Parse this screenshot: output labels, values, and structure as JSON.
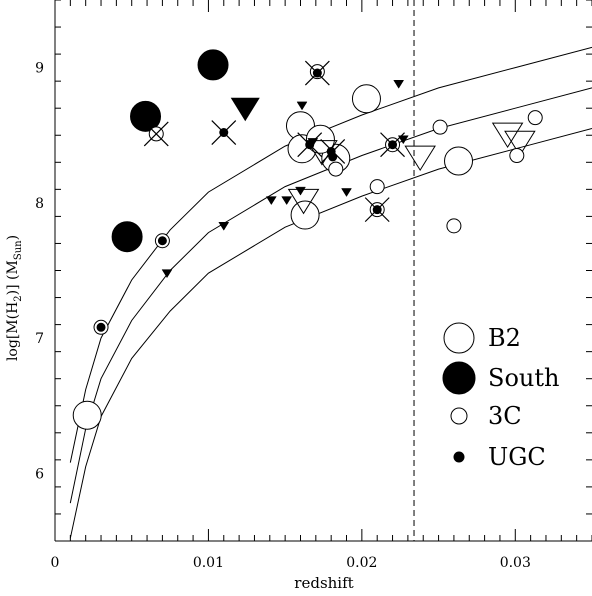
{
  "chart_data": {
    "type": "scatter",
    "xlabel": "redshift",
    "ylabel_main": "log[M(H",
    "ylabel_sub": "2",
    "ylabel_mid": ")]  (M",
    "ylabel_unit_sub": "Sun",
    "ylabel_end": ")",
    "xlim": [
      0,
      0.035
    ],
    "ylim": [
      5.5,
      9.5
    ],
    "xticks": [
      {
        "v": 0,
        "label": "0"
      },
      {
        "v": 0.01,
        "label": "0.01"
      },
      {
        "v": 0.02,
        "label": "0.02"
      },
      {
        "v": 0.03,
        "label": "0.03"
      }
    ],
    "yticks": [
      {
        "v": 6,
        "label": "6"
      },
      {
        "v": 7,
        "label": "7"
      },
      {
        "v": 8,
        "label": "8"
      },
      {
        "v": 9,
        "label": "9"
      }
    ],
    "vline_x": 0.0234,
    "legend": [
      {
        "symbol": "large-open-circle",
        "label": "B2"
      },
      {
        "symbol": "large-filled-circle",
        "label": "South"
      },
      {
        "symbol": "small-open-circle",
        "label": "3C"
      },
      {
        "symbol": "small-filled-circle",
        "label": "UGC"
      }
    ],
    "curves": [
      {
        "points": [
          [
            0.001,
            6.08
          ],
          [
            0.002,
            6.62
          ],
          [
            0.003,
            7.0
          ],
          [
            0.005,
            7.43
          ],
          [
            0.0075,
            7.8
          ],
          [
            0.01,
            8.08
          ],
          [
            0.015,
            8.42
          ],
          [
            0.02,
            8.65
          ],
          [
            0.025,
            8.85
          ],
          [
            0.03,
            9.0
          ],
          [
            0.035,
            9.15
          ]
        ]
      },
      {
        "points": [
          [
            0.001,
            5.78
          ],
          [
            0.002,
            6.33
          ],
          [
            0.003,
            6.7
          ],
          [
            0.005,
            7.13
          ],
          [
            0.0075,
            7.5
          ],
          [
            0.01,
            7.78
          ],
          [
            0.015,
            8.12
          ],
          [
            0.02,
            8.35
          ],
          [
            0.025,
            8.55
          ],
          [
            0.03,
            8.7
          ],
          [
            0.035,
            8.85
          ]
        ]
      },
      {
        "points": [
          [
            0.001,
            5.52
          ],
          [
            0.002,
            6.05
          ],
          [
            0.003,
            6.42
          ],
          [
            0.005,
            6.85
          ],
          [
            0.0075,
            7.2
          ],
          [
            0.01,
            7.48
          ],
          [
            0.015,
            7.82
          ],
          [
            0.02,
            8.05
          ],
          [
            0.025,
            8.25
          ],
          [
            0.03,
            8.4
          ],
          [
            0.035,
            8.55
          ]
        ]
      }
    ],
    "b2_circles": [
      {
        "x": 0.0021,
        "y": 6.43
      },
      {
        "x": 0.0183,
        "y": 8.33
      },
      {
        "x": 0.0163,
        "y": 7.91
      },
      {
        "x": 0.016,
        "y": 8.57
      },
      {
        "x": 0.0161,
        "y": 8.4
      },
      {
        "x": 0.0173,
        "y": 8.47
      },
      {
        "x": 0.0203,
        "y": 8.77
      },
      {
        "x": 0.0263,
        "y": 8.31
      }
    ],
    "b2_triangles": [
      {
        "x": 0.0162,
        "y": 8.02
      },
      {
        "x": 0.0174,
        "y": 8.38
      },
      {
        "x": 0.0238,
        "y": 8.34
      },
      {
        "x": 0.0295,
        "y": 8.51
      },
      {
        "x": 0.0303,
        "y": 8.45
      }
    ],
    "south_circles": [
      {
        "x": 0.0047,
        "y": 7.75
      },
      {
        "x": 0.0059,
        "y": 8.64
      },
      {
        "x": 0.0103,
        "y": 9.02
      }
    ],
    "south_triangles": [
      {
        "x": 0.0124,
        "y": 8.7
      }
    ],
    "c3_circles": [
      {
        "x": 0.003,
        "y": 7.08
      },
      {
        "x": 0.007,
        "y": 7.72
      },
      {
        "x": 0.0066,
        "y": 8.51
      },
      {
        "x": 0.0171,
        "y": 8.97
      },
      {
        "x": 0.0183,
        "y": 8.25
      },
      {
        "x": 0.021,
        "y": 8.12
      },
      {
        "x": 0.021,
        "y": 7.95
      },
      {
        "x": 0.022,
        "y": 8.43
      },
      {
        "x": 0.0251,
        "y": 8.56
      },
      {
        "x": 0.026,
        "y": 7.83
      },
      {
        "x": 0.0301,
        "y": 8.35
      },
      {
        "x": 0.0313,
        "y": 8.63
      }
    ],
    "ugc_dots": [
      {
        "x": 0.003,
        "y": 7.08
      },
      {
        "x": 0.007,
        "y": 7.72
      },
      {
        "x": 0.011,
        "y": 8.52
      },
      {
        "x": 0.0171,
        "y": 8.96
      },
      {
        "x": 0.0166,
        "y": 8.43
      },
      {
        "x": 0.018,
        "y": 8.38
      },
      {
        "x": 0.0181,
        "y": 8.34
      },
      {
        "x": 0.021,
        "y": 7.95
      },
      {
        "x": 0.022,
        "y": 8.43
      }
    ],
    "crosses": [
      {
        "x": 0.0066,
        "y": 8.51
      },
      {
        "x": 0.011,
        "y": 8.52
      },
      {
        "x": 0.0171,
        "y": 8.96
      },
      {
        "x": 0.0166,
        "y": 8.43
      },
      {
        "x": 0.0181,
        "y": 8.38
      },
      {
        "x": 0.021,
        "y": 7.95
      },
      {
        "x": 0.022,
        "y": 8.43
      }
    ],
    "upper_limits": [
      {
        "x": 0.0073,
        "y": 7.48
      },
      {
        "x": 0.011,
        "y": 7.83
      },
      {
        "x": 0.0141,
        "y": 8.02
      },
      {
        "x": 0.0151,
        "y": 8.02
      },
      {
        "x": 0.016,
        "y": 8.09
      },
      {
        "x": 0.0161,
        "y": 8.72
      },
      {
        "x": 0.0168,
        "y": 8.45
      },
      {
        "x": 0.019,
        "y": 8.08
      },
      {
        "x": 0.0224,
        "y": 8.88
      },
      {
        "x": 0.0227,
        "y": 8.47
      }
    ]
  }
}
